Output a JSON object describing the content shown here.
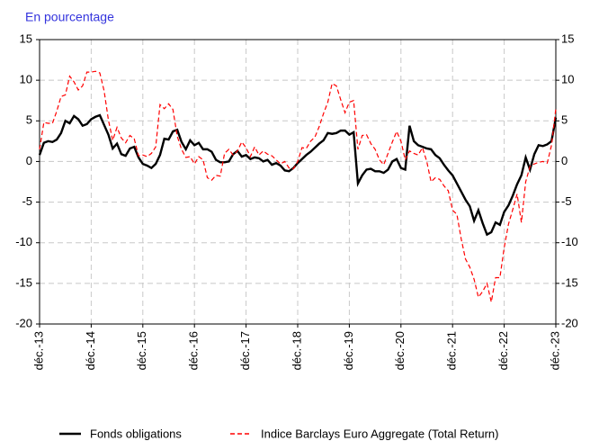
{
  "chart_data": {
    "type": "line",
    "title": "En pourcentage",
    "categories": [
      "déc.-13",
      null,
      null,
      null,
      null,
      null,
      null,
      null,
      null,
      null,
      null,
      null,
      "déc.-14",
      null,
      null,
      null,
      null,
      null,
      null,
      null,
      null,
      null,
      null,
      null,
      "déc.-15",
      null,
      null,
      null,
      null,
      null,
      null,
      null,
      null,
      null,
      null,
      null,
      "déc.-16",
      null,
      null,
      null,
      null,
      null,
      null,
      null,
      null,
      null,
      null,
      null,
      "déc.-17",
      null,
      null,
      null,
      null,
      null,
      null,
      null,
      null,
      null,
      null,
      null,
      "déc.-18",
      null,
      null,
      null,
      null,
      null,
      null,
      null,
      null,
      null,
      null,
      null,
      "déc.-19",
      null,
      null,
      null,
      null,
      null,
      null,
      null,
      null,
      null,
      null,
      null,
      "déc.-20",
      null,
      null,
      null,
      null,
      null,
      null,
      null,
      null,
      null,
      null,
      null,
      "déc.-21",
      null,
      null,
      null,
      null,
      null,
      null,
      null,
      null,
      null,
      null,
      null,
      "déc.-22",
      null,
      null,
      null,
      null,
      null,
      null,
      null,
      null,
      null,
      null,
      null,
      "déc.-23"
    ],
    "series": [
      {
        "name": "Fonds obligations",
        "color": "#000000",
        "dash": false,
        "values": [
          0.8,
          2.3,
          2.5,
          2.4,
          2.7,
          3.5,
          5.0,
          4.7,
          5.6,
          5.2,
          4.4,
          4.6,
          5.2,
          5.5,
          5.7,
          4.5,
          3.3,
          1.6,
          2.2,
          0.9,
          0.7,
          1.6,
          1.8,
          0.5,
          -0.3,
          -0.5,
          -0.8,
          -0.3,
          0.8,
          2.8,
          2.7,
          3.7,
          3.9,
          2.4,
          1.5,
          2.6,
          2.0,
          2.3,
          1.5,
          1.5,
          1.2,
          0.2,
          -0.1,
          -0.1,
          0.0,
          0.9,
          1.3,
          0.6,
          0.8,
          0.3,
          0.5,
          0.4,
          0.0,
          0.2,
          -0.4,
          -0.2,
          -0.5,
          -1.1,
          -1.2,
          -0.8,
          -0.2,
          0.3,
          0.8,
          1.2,
          1.7,
          2.2,
          2.6,
          3.5,
          3.4,
          3.5,
          3.8,
          3.8,
          3.3,
          3.6,
          -2.7,
          -1.7,
          -1.0,
          -0.9,
          -1.2,
          -1.2,
          -1.4,
          -1.0,
          0.0,
          0.3,
          -0.8,
          -1.0,
          4.4,
          2.5,
          2.0,
          1.8,
          1.6,
          1.5,
          0.8,
          0.4,
          -0.4,
          -1.1,
          -1.7,
          -2.7,
          -3.7,
          -4.7,
          -5.5,
          -7.3,
          -6.0,
          -7.6,
          -9.0,
          -8.7,
          -7.5,
          -7.8,
          -6.2,
          -5.4,
          -4.2,
          -2.8,
          -1.7,
          0.5,
          -1.0,
          0.9,
          2.0,
          1.9,
          2.1,
          2.5,
          5.4
        ]
      },
      {
        "name": "Indice Barclays Euro Aggregate (Total Return)",
        "color": "#ff0000",
        "dash": true,
        "values": [
          1.5,
          4.8,
          4.7,
          4.7,
          6.2,
          8.0,
          8.2,
          10.5,
          9.8,
          8.8,
          9.3,
          11.0,
          11.0,
          11.1,
          10.9,
          8.7,
          5.1,
          2.6,
          4.2,
          2.9,
          2.3,
          3.2,
          2.8,
          0.7,
          0.8,
          0.6,
          1.0,
          1.8,
          7.0,
          6.5,
          7.1,
          6.4,
          3.1,
          1.5,
          0.5,
          0.6,
          -0.3,
          0.6,
          0.2,
          -2.0,
          -2.3,
          -1.7,
          -1.8,
          1.0,
          1.5,
          0.8,
          1.3,
          2.4,
          1.7,
          0.6,
          1.8,
          0.8,
          1.3,
          0.9,
          0.7,
          0.2,
          -0.3,
          0.0,
          -0.8,
          -0.9,
          0.0,
          1.7,
          1.6,
          2.5,
          3.0,
          4.3,
          5.9,
          7.3,
          9.6,
          9.3,
          7.6,
          6.0,
          7.3,
          7.5,
          1.5,
          3.2,
          3.3,
          2.2,
          1.5,
          0.2,
          -0.4,
          1.0,
          2.4,
          3.7,
          2.5,
          0.2,
          1.3,
          1.0,
          0.8,
          1.7,
          0.0,
          -2.5,
          -2.0,
          -2.2,
          -3.0,
          -3.6,
          -6.0,
          -6.5,
          -9.5,
          -12.0,
          -13.0,
          -14.5,
          -16.7,
          -16.0,
          -15.0,
          -17.3,
          -14.3,
          -14.3,
          -10.6,
          -7.7,
          -5.9,
          -4.0,
          -7.5,
          -2.5,
          -0.6,
          -0.3,
          -0.1,
          0.0,
          -0.2,
          2.0,
          6.5
        ]
      }
    ],
    "ylim": [
      -20,
      15
    ],
    "yticks": [
      15,
      10,
      5,
      0,
      -5,
      -10,
      -15,
      -20
    ],
    "grid": true,
    "legend": "bottom"
  }
}
